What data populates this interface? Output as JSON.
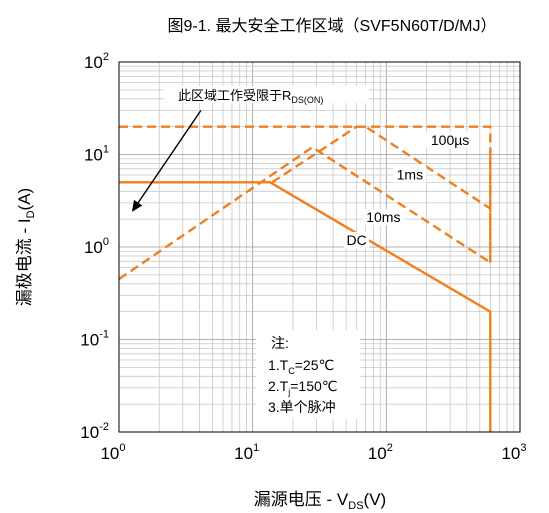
{
  "chart_data": {
    "type": "line",
    "title": "图9-1. 最大安全工作区域（SVF5N60T/D/MJ）",
    "xlabel": {
      "main": "漏源电压 - V",
      "sub": "DS",
      "unit": "(V)"
    },
    "ylabel": {
      "main": "漏极电流 - I",
      "sub": "D",
      "unit": "(A)"
    },
    "x_scale": "log",
    "y_scale": "log",
    "xlim": [
      1,
      1000
    ],
    "ylim": [
      0.01,
      100
    ],
    "grid": true,
    "x_ticks": [
      {
        "base": "10",
        "exp": "0",
        "value": 1
      },
      {
        "base": "10",
        "exp": "1",
        "value": 10
      },
      {
        "base": "10",
        "exp": "2",
        "value": 100
      },
      {
        "base": "10",
        "exp": "3",
        "value": 1000
      }
    ],
    "y_ticks": [
      {
        "base": "10",
        "exp": "2",
        "value": 100
      },
      {
        "base": "10",
        "exp": "1",
        "value": 10
      },
      {
        "base": "10",
        "exp": "0",
        "value": 1
      },
      {
        "base": "10",
        "exp": "-1",
        "value": 0.1
      },
      {
        "base": "10",
        "exp": "-2",
        "value": 0.01
      }
    ],
    "series": [
      {
        "name": "DC",
        "style": "solid",
        "points": [
          [
            1,
            5
          ],
          [
            13.5,
            5
          ],
          [
            600,
            0.2
          ],
          [
            600,
            0.01
          ]
        ]
      },
      {
        "name": "10ms",
        "style": "dashed",
        "points": [
          [
            1,
            0.45
          ],
          [
            28,
            12
          ],
          [
            600,
            0.68
          ]
        ]
      },
      {
        "name": "1ms",
        "style": "dashed",
        "points": [
          [
            14,
            5
          ],
          [
            60,
            20
          ],
          [
            70,
            20
          ],
          [
            600,
            2.6
          ]
        ]
      },
      {
        "name": "100µs",
        "style": "dashed",
        "points": [
          [
            1,
            20
          ],
          [
            600,
            20
          ],
          [
            600,
            0.68
          ]
        ]
      },
      {
        "name": "",
        "style": "dashed",
        "points": [
          [
            600,
            9.5
          ],
          [
            600,
            0.68
          ]
        ]
      }
    ],
    "series_labels": [
      {
        "text": "100µs",
        "x": 300,
        "y": 13
      },
      {
        "text": "1ms",
        "x": 150,
        "y": 5.5
      },
      {
        "text": "10ms",
        "x": 95,
        "y": 1.9
      },
      {
        "text": "DC",
        "x": 60,
        "y": 1.08
      }
    ],
    "annotation": {
      "text_main": "此区域工作受限于R",
      "text_sub": "DS(ON)",
      "arrow_from": [
        4.1,
        30
      ],
      "arrow_to": [
        1.25,
        2.4
      ]
    },
    "notes": {
      "title": "注:",
      "line1": {
        "a": "1.T",
        "sub": "C",
        "b": "=25℃"
      },
      "line2": {
        "a": "2.T",
        "sub": "j",
        "b": "=150℃"
      },
      "line3": "3.单个脉冲"
    },
    "colors": {
      "curve": "#F07F1F",
      "grid": "#C8C8C8",
      "axis": "#000000"
    }
  }
}
